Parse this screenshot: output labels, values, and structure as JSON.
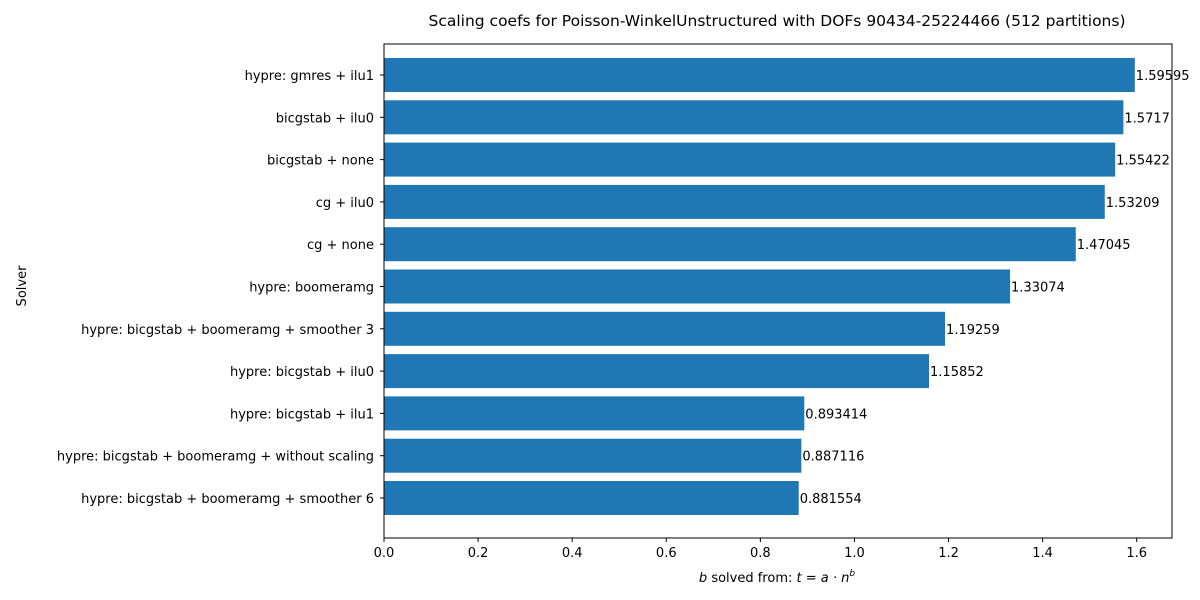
{
  "chart_data": {
    "type": "bar",
    "orientation": "horizontal",
    "title": "Scaling coefs for Poisson-WinkelUnstructured with DOFs 90434-25224466 (512 partitions)",
    "xlabel_prefix": "b",
    "xlabel_middle": " solved from: ",
    "xlabel_formula": "t = a · n",
    "xlabel_exponent": "b",
    "ylabel": "Solver",
    "xlim": [
      0,
      1.675
    ],
    "xticks": [
      "0.0",
      "0.2",
      "0.4",
      "0.6",
      "0.8",
      "1.0",
      "1.2",
      "1.4",
      "1.6"
    ],
    "bar_color": "#1f77b4",
    "grid": false,
    "categories": [
      "hypre: gmres + ilu1",
      "bicgstab + ilu0",
      "bicgstab + none",
      "cg + ilu0",
      "cg + none",
      "hypre: boomeramg",
      "hypre: bicgstab + boomeramg + smoother 3",
      "hypre: bicgstab + ilu0",
      "hypre: bicgstab + ilu1",
      "hypre: bicgstab + boomeramg + without scaling",
      "hypre: bicgstab + boomeramg + smoother 6"
    ],
    "values": [
      1.59595,
      1.5717,
      1.55422,
      1.53209,
      1.47045,
      1.33074,
      1.19259,
      1.15852,
      0.893414,
      0.887116,
      0.881554
    ],
    "value_labels": [
      "1.59595",
      "1.5717",
      "1.55422",
      "1.53209",
      "1.47045",
      "1.33074",
      "1.19259",
      "1.15852",
      "0.893414",
      "0.887116",
      "0.881554"
    ]
  }
}
